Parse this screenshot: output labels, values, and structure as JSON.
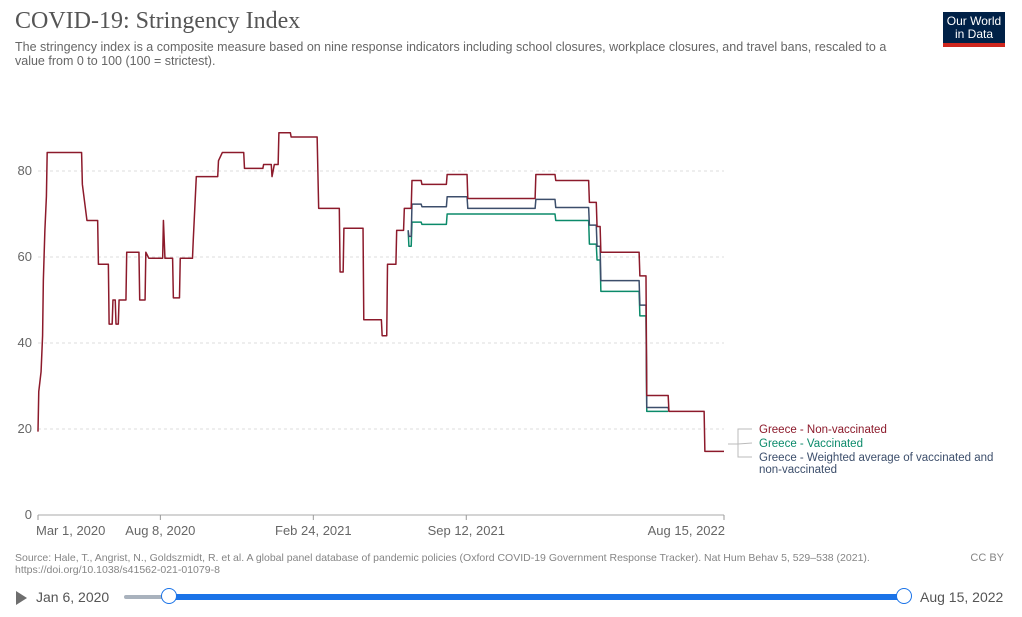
{
  "header": {
    "title": "COVID-19: Stringency Index",
    "subtitle": "The stringency index is a composite measure based on nine response indicators including school closures, workplace closures, and travel bans, rescaled to a value from 0 to 100 (100 = strictest).",
    "logo_line1": "Our World",
    "logo_line2": "in Data"
  },
  "footer": {
    "source": "Source: Hale, T., Angrist, N., Goldszmidt, R. et al. A global panel database of pandemic policies (Oxford COVID-19 Government Response Tracker). Nat Hum Behav 5, 529–538 (2021). https://doi.org/10.1038/s41562-021-01079-8",
    "license": "CC BY"
  },
  "timeline": {
    "start_label": "Jan 6, 2020",
    "end_label": "Aug 15, 2022"
  },
  "colors": {
    "non_vaccinated": "#8c1a2b",
    "vaccinated": "#0b8a6a",
    "weighted": "#3c4e6b",
    "grid": "#dddddd"
  },
  "chart_data": {
    "type": "line",
    "x_start": "2020-03-01",
    "x_end": "2022-08-15",
    "ylim": [
      0,
      100
    ],
    "yticks": [
      0,
      20,
      40,
      60,
      80
    ],
    "xticks": [
      "Mar 1, 2020",
      "Aug 8, 2020",
      "Feb 24, 2021",
      "Sep 12, 2021",
      "Aug 15, 2022"
    ],
    "xtick_dates": [
      "2020-03-01",
      "2020-08-08",
      "2021-02-24",
      "2021-09-12",
      "2022-08-15"
    ],
    "grid": true,
    "legend_position": "right",
    "series": [
      {
        "name": "Greece - Non-vaccinated",
        "points": [
          [
            "2020-03-01",
            19.4
          ],
          [
            "2020-03-02",
            28.7
          ],
          [
            "2020-03-05",
            33.3
          ],
          [
            "2020-03-07",
            41.7
          ],
          [
            "2020-03-08",
            54.6
          ],
          [
            "2020-03-10",
            66.2
          ],
          [
            "2020-03-12",
            74.1
          ],
          [
            "2020-03-13",
            84.3
          ],
          [
            "2020-04-27",
            84.3
          ],
          [
            "2020-04-28",
            76.9
          ],
          [
            "2020-05-04",
            68.5
          ],
          [
            "2020-05-18",
            68.5
          ],
          [
            "2020-05-19",
            58.3
          ],
          [
            "2020-06-01",
            58.3
          ],
          [
            "2020-06-02",
            44.4
          ],
          [
            "2020-06-06",
            44.4
          ],
          [
            "2020-06-07",
            50.0
          ],
          [
            "2020-06-10",
            50.0
          ],
          [
            "2020-06-11",
            44.4
          ],
          [
            "2020-06-14",
            44.4
          ],
          [
            "2020-06-15",
            50.0
          ],
          [
            "2020-06-24",
            50.0
          ],
          [
            "2020-06-25",
            61.1
          ],
          [
            "2020-07-11",
            61.1
          ],
          [
            "2020-07-12",
            50.0
          ],
          [
            "2020-07-19",
            50.0
          ],
          [
            "2020-07-20",
            61.1
          ],
          [
            "2020-07-24",
            59.7
          ],
          [
            "2020-08-11",
            59.7
          ],
          [
            "2020-08-12",
            68.5
          ],
          [
            "2020-08-14",
            59.7
          ],
          [
            "2020-08-24",
            59.7
          ],
          [
            "2020-08-25",
            50.5
          ],
          [
            "2020-09-02",
            50.5
          ],
          [
            "2020-09-03",
            59.7
          ],
          [
            "2020-09-19",
            59.7
          ],
          [
            "2020-09-20",
            63.9
          ],
          [
            "2020-09-24",
            78.7
          ],
          [
            "2020-10-22",
            78.7
          ],
          [
            "2020-10-23",
            82.4
          ],
          [
            "2020-10-28",
            84.3
          ],
          [
            "2020-11-25",
            84.3
          ],
          [
            "2020-11-26",
            80.6
          ],
          [
            "2020-12-20",
            80.6
          ],
          [
            "2020-12-21",
            81.5
          ],
          [
            "2020-12-31",
            81.5
          ],
          [
            "2021-01-01",
            78.7
          ],
          [
            "2021-01-04",
            81.5
          ],
          [
            "2021-01-09",
            81.5
          ],
          [
            "2021-01-10",
            88.9
          ],
          [
            "2021-01-25",
            88.9
          ],
          [
            "2021-01-26",
            87.9
          ],
          [
            "2021-03-01",
            87.9
          ],
          [
            "2021-03-03",
            71.3
          ],
          [
            "2021-03-30",
            71.3
          ],
          [
            "2021-03-31",
            56.5
          ],
          [
            "2021-04-04",
            56.5
          ],
          [
            "2021-04-05",
            66.7
          ],
          [
            "2021-04-30",
            66.7
          ],
          [
            "2021-05-01",
            45.4
          ],
          [
            "2021-05-24",
            45.4
          ],
          [
            "2021-05-25",
            41.7
          ],
          [
            "2021-05-31",
            41.7
          ],
          [
            "2021-06-01",
            58.3
          ],
          [
            "2021-06-12",
            58.3
          ],
          [
            "2021-06-13",
            66.2
          ],
          [
            "2021-06-22",
            66.2
          ],
          [
            "2021-06-23",
            71.3
          ],
          [
            "2021-07-02",
            71.3
          ],
          [
            "2021-07-03",
            77.8
          ],
          [
            "2021-07-15",
            77.8
          ],
          [
            "2021-07-16",
            76.9
          ],
          [
            "2021-08-17",
            76.9
          ],
          [
            "2021-08-18",
            79.2
          ],
          [
            "2021-09-13",
            79.2
          ],
          [
            "2021-09-14",
            73.6
          ],
          [
            "2021-12-11",
            73.6
          ],
          [
            "2021-12-12",
            79.2
          ],
          [
            "2022-01-06",
            79.2
          ],
          [
            "2022-01-07",
            77.8
          ],
          [
            "2022-02-19",
            77.8
          ],
          [
            "2022-02-20",
            72.7
          ],
          [
            "2022-03-01",
            72.7
          ],
          [
            "2022-03-02",
            67.1
          ],
          [
            "2022-03-06",
            67.1
          ],
          [
            "2022-03-07",
            61.1
          ],
          [
            "2022-04-26",
            61.1
          ],
          [
            "2022-04-27",
            55.6
          ],
          [
            "2022-05-05",
            55.6
          ],
          [
            "2022-05-06",
            27.8
          ],
          [
            "2022-06-03",
            27.8
          ],
          [
            "2022-06-04",
            24.1
          ],
          [
            "2022-07-20",
            24.1
          ],
          [
            "2022-07-21",
            14.8
          ],
          [
            "2022-08-15",
            14.8
          ]
        ]
      },
      {
        "name": "Greece - Vaccinated",
        "points": [
          [
            "2021-06-28",
            66.2
          ],
          [
            "2021-06-29",
            62.5
          ],
          [
            "2021-07-02",
            62.5
          ],
          [
            "2021-07-03",
            68.1
          ],
          [
            "2021-07-15",
            68.1
          ],
          [
            "2021-07-16",
            67.6
          ],
          [
            "2021-08-17",
            67.6
          ],
          [
            "2021-08-18",
            70.0
          ],
          [
            "2021-12-11",
            70.0
          ],
          [
            "2022-01-06",
            70.0
          ],
          [
            "2022-01-07",
            68.5
          ],
          [
            "2022-02-19",
            68.5
          ],
          [
            "2022-02-20",
            63.0
          ],
          [
            "2022-03-01",
            63.0
          ],
          [
            "2022-03-02",
            59.3
          ],
          [
            "2022-03-06",
            59.3
          ],
          [
            "2022-03-07",
            52.0
          ],
          [
            "2022-04-26",
            52.0
          ],
          [
            "2022-04-27",
            46.3
          ],
          [
            "2022-05-05",
            46.3
          ],
          [
            "2022-05-06",
            24.1
          ],
          [
            "2022-06-03",
            24.1
          ]
        ]
      },
      {
        "name": "Greece - Weighted average of vaccinated and non-vaccinated",
        "points": [
          [
            "2021-06-28",
            66.2
          ],
          [
            "2021-06-29",
            64.8
          ],
          [
            "2021-07-02",
            64.8
          ],
          [
            "2021-07-03",
            72.3
          ],
          [
            "2021-07-15",
            72.3
          ],
          [
            "2021-07-16",
            71.7
          ],
          [
            "2021-08-17",
            71.7
          ],
          [
            "2021-08-18",
            74.0
          ],
          [
            "2021-09-13",
            74.0
          ],
          [
            "2021-09-14",
            71.3
          ],
          [
            "2021-12-11",
            71.3
          ],
          [
            "2021-12-12",
            73.4
          ],
          [
            "2022-01-06",
            73.4
          ],
          [
            "2022-01-07",
            71.5
          ],
          [
            "2022-02-19",
            71.5
          ],
          [
            "2022-02-20",
            67.4
          ],
          [
            "2022-03-01",
            67.4
          ],
          [
            "2022-03-02",
            62.5
          ],
          [
            "2022-03-06",
            62.5
          ],
          [
            "2022-03-07",
            54.5
          ],
          [
            "2022-04-26",
            54.5
          ],
          [
            "2022-04-27",
            48.8
          ],
          [
            "2022-05-05",
            48.8
          ],
          [
            "2022-05-06",
            25.0
          ],
          [
            "2022-06-03",
            25.0
          ],
          [
            "2022-06-04",
            24.1
          ]
        ]
      }
    ]
  }
}
